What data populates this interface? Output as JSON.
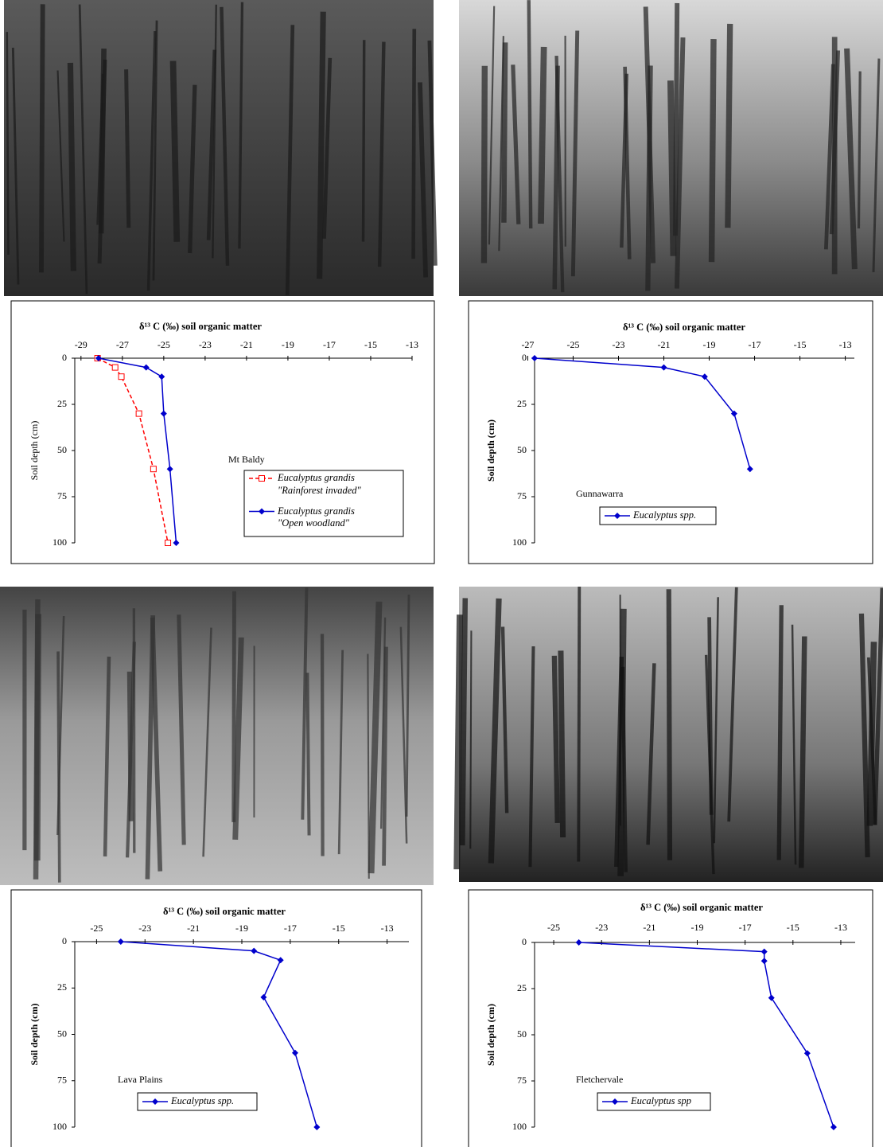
{
  "chart_data": [
    {
      "type": "line",
      "title": "δ¹³ C (‰) soil organic matter",
      "ylabel": "Soil depth (cm)",
      "annotation": "Mt Baldy",
      "xlim": [
        -29.3,
        -13
      ],
      "xticks": [
        -29,
        -27,
        -25,
        -23,
        -21,
        -19,
        -17,
        -15,
        -13
      ],
      "ylim": [
        0,
        100
      ],
      "yticks": [
        0,
        25,
        50,
        75,
        100
      ],
      "y_inverted": true,
      "ylabel_bold": false,
      "depths": [
        0,
        5,
        10,
        30,
        60,
        100
      ],
      "series": [
        {
          "name": "Eucalyptus grandis\n\"Rainforest invaded\"",
          "color": "#ff0000",
          "dashed": true,
          "marker": "square",
          "values": [
            -28.2,
            -27.35,
            -27.05,
            -26.2,
            -25.5,
            -24.8
          ]
        },
        {
          "name": "Eucalyptus grandis\n\"Open woodland\"",
          "color": "#0000cc",
          "dashed": false,
          "marker": "diamond",
          "values": [
            -28.15,
            -25.85,
            -25.1,
            -25.0,
            -24.7,
            -24.4
          ]
        }
      ]
    },
    {
      "type": "line",
      "title": "δ¹³ C (‰) soil organic matter",
      "ylabel": "Soil depth (cm)",
      "annotation": "Gunnawarra",
      "xlim": [
        -26.7,
        -12.6
      ],
      "xticks": [
        -27,
        -25,
        -23,
        -21,
        -19,
        -17,
        -15,
        -13
      ],
      "ylim": [
        0,
        100
      ],
      "yticks": [
        0,
        25,
        50,
        75,
        100
      ],
      "y_inverted": true,
      "ylabel_bold": true,
      "depths": [
        0,
        5,
        10,
        30,
        60
      ],
      "series": [
        {
          "name": "Eucalyptus spp.",
          "color": "#0000cc",
          "dashed": false,
          "marker": "diamond",
          "values": [
            -26.7,
            -21.0,
            -19.2,
            -17.9,
            -17.2
          ]
        }
      ]
    },
    {
      "type": "line",
      "title": "δ¹³ C (‰) soil organic matter",
      "ylabel": "Soil depth (cm)",
      "annotation": "Lava Plains",
      "xlim": [
        -25.9,
        -12.1
      ],
      "xticks": [
        -25,
        -23,
        -21,
        -19,
        -17,
        -15,
        -13
      ],
      "ylim": [
        0,
        100
      ],
      "yticks": [
        0,
        25,
        50,
        75,
        100
      ],
      "y_inverted": true,
      "ylabel_bold": true,
      "depths": [
        0,
        5,
        10,
        30,
        60,
        100
      ],
      "series": [
        {
          "name": "Eucalyptus spp.",
          "color": "#0000cc",
          "dashed": false,
          "marker": "diamond",
          "values": [
            -24.0,
            -18.5,
            -17.4,
            -18.1,
            -16.8,
            -15.9
          ]
        }
      ]
    },
    {
      "type": "line",
      "title": "δ¹³ C (‰) soil organic matter",
      "ylabel": "Soil depth (cm)",
      "annotation": "Fletchervale",
      "xlim": [
        -25.8,
        -12.4
      ],
      "xticks": [
        -25,
        -23,
        -21,
        -19,
        -17,
        -15,
        -13
      ],
      "ylim": [
        0,
        100
      ],
      "yticks": [
        0,
        25,
        50,
        75,
        100
      ],
      "y_inverted": true,
      "ylabel_bold": true,
      "depths": [
        0,
        5,
        10,
        30,
        60,
        100
      ],
      "series": [
        {
          "name": "Eucalyptus spp",
          "color": "#0000cc",
          "dashed": false,
          "marker": "diamond",
          "values": [
            -23.95,
            -16.2,
            -16.2,
            -15.9,
            -14.4,
            -13.3
          ]
        }
      ]
    }
  ]
}
